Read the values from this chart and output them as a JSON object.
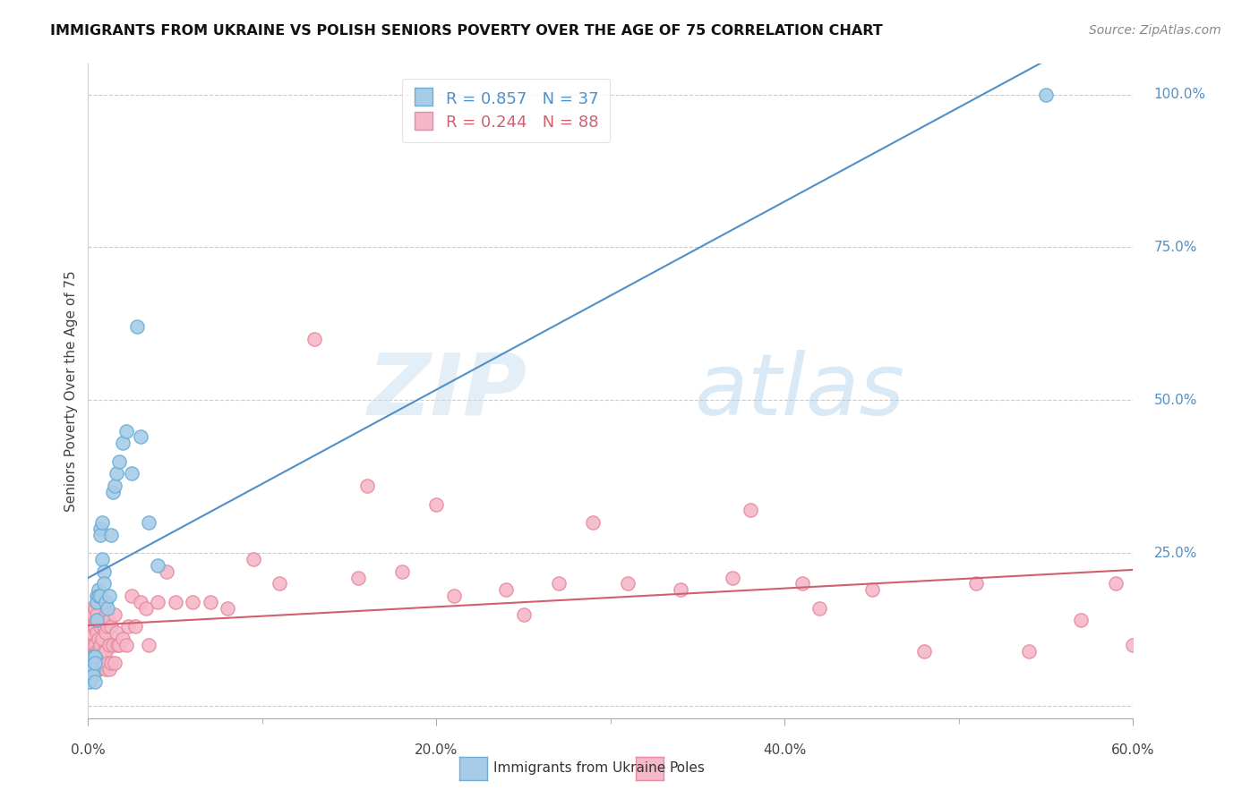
{
  "title": "IMMIGRANTS FROM UKRAINE VS POLISH SENIORS POVERTY OVER THE AGE OF 75 CORRELATION CHART",
  "source": "Source: ZipAtlas.com",
  "ylabel": "Seniors Poverty Over the Age of 75",
  "xmin": 0.0,
  "xmax": 0.6,
  "ymin": -0.02,
  "ymax": 1.05,
  "legend_line1_r": "R = 0.857",
  "legend_line1_n": "N = 37",
  "legend_line2_r": "R = 0.244",
  "legend_line2_n": "N = 88",
  "legend_label1": "Immigrants from Ukraine",
  "legend_label2": "Poles",
  "blue_scatter_color": "#a8cce8",
  "pink_scatter_color": "#f5b8c8",
  "blue_edge_color": "#6aaed6",
  "pink_edge_color": "#e88aa0",
  "blue_line_color": "#5090c8",
  "pink_line_color": "#d06070",
  "watermark_color": "#c5ddf0",
  "grid_color": "#cccccc",
  "right_axis_color": "#5090c8",
  "title_color": "#111111",
  "source_color": "#888888",
  "blue_scatter_x": [
    0.001,
    0.002,
    0.002,
    0.003,
    0.003,
    0.003,
    0.004,
    0.004,
    0.004,
    0.005,
    0.005,
    0.005,
    0.006,
    0.006,
    0.007,
    0.007,
    0.007,
    0.008,
    0.008,
    0.009,
    0.009,
    0.01,
    0.011,
    0.012,
    0.013,
    0.014,
    0.015,
    0.016,
    0.018,
    0.02,
    0.022,
    0.025,
    0.028,
    0.03,
    0.035,
    0.04,
    0.55
  ],
  "blue_scatter_y": [
    0.04,
    0.07,
    0.05,
    0.08,
    0.06,
    0.05,
    0.08,
    0.07,
    0.04,
    0.18,
    0.17,
    0.14,
    0.19,
    0.18,
    0.29,
    0.28,
    0.18,
    0.3,
    0.24,
    0.22,
    0.2,
    0.17,
    0.16,
    0.18,
    0.28,
    0.35,
    0.36,
    0.38,
    0.4,
    0.43,
    0.45,
    0.38,
    0.62,
    0.44,
    0.3,
    0.23,
    1.0
  ],
  "pink_scatter_x": [
    0.001,
    0.001,
    0.001,
    0.002,
    0.002,
    0.002,
    0.002,
    0.003,
    0.003,
    0.003,
    0.003,
    0.004,
    0.004,
    0.004,
    0.004,
    0.005,
    0.005,
    0.005,
    0.005,
    0.005,
    0.006,
    0.006,
    0.006,
    0.006,
    0.007,
    0.007,
    0.007,
    0.008,
    0.008,
    0.008,
    0.009,
    0.009,
    0.01,
    0.01,
    0.01,
    0.01,
    0.011,
    0.011,
    0.012,
    0.012,
    0.012,
    0.013,
    0.013,
    0.014,
    0.015,
    0.015,
    0.016,
    0.017,
    0.018,
    0.02,
    0.022,
    0.023,
    0.025,
    0.027,
    0.03,
    0.033,
    0.035,
    0.04,
    0.045,
    0.05,
    0.06,
    0.07,
    0.08,
    0.095,
    0.11,
    0.13,
    0.155,
    0.18,
    0.21,
    0.24,
    0.27,
    0.31,
    0.34,
    0.37,
    0.41,
    0.45,
    0.48,
    0.51,
    0.54,
    0.57,
    0.59,
    0.6,
    0.42,
    0.38,
    0.29,
    0.25,
    0.2,
    0.16
  ],
  "pink_scatter_y": [
    0.15,
    0.13,
    0.1,
    0.16,
    0.14,
    0.12,
    0.08,
    0.15,
    0.13,
    0.1,
    0.07,
    0.16,
    0.13,
    0.1,
    0.07,
    0.17,
    0.15,
    0.12,
    0.09,
    0.06,
    0.14,
    0.11,
    0.09,
    0.06,
    0.13,
    0.1,
    0.07,
    0.14,
    0.11,
    0.07,
    0.13,
    0.09,
    0.15,
    0.12,
    0.09,
    0.06,
    0.13,
    0.07,
    0.14,
    0.1,
    0.06,
    0.13,
    0.07,
    0.1,
    0.15,
    0.07,
    0.12,
    0.1,
    0.1,
    0.11,
    0.1,
    0.13,
    0.18,
    0.13,
    0.17,
    0.16,
    0.1,
    0.17,
    0.22,
    0.17,
    0.17,
    0.17,
    0.16,
    0.24,
    0.2,
    0.6,
    0.21,
    0.22,
    0.18,
    0.19,
    0.2,
    0.2,
    0.19,
    0.21,
    0.2,
    0.19,
    0.09,
    0.2,
    0.09,
    0.14,
    0.2,
    0.1,
    0.16,
    0.32,
    0.3,
    0.15,
    0.33,
    0.36
  ]
}
